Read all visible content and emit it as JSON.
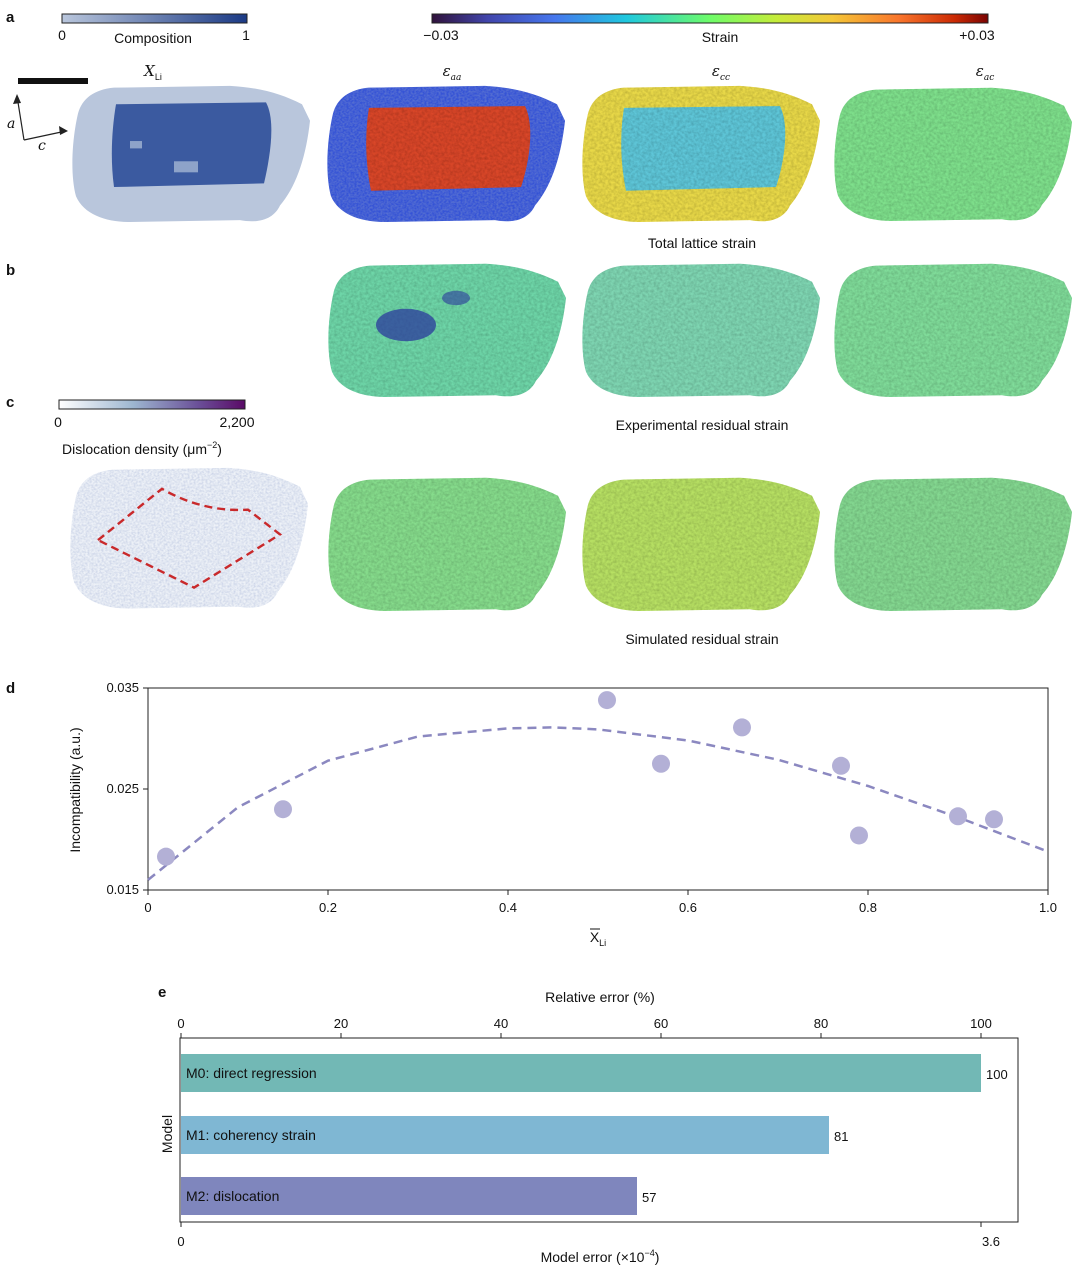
{
  "panel_labels": {
    "a": "a",
    "b": "b",
    "c": "c",
    "d": "d",
    "e": "e"
  },
  "composition_bar": {
    "min_label": "0",
    "max_label": "1",
    "title": "Composition",
    "colors": [
      "#b9c6dc",
      "#1b3a85"
    ]
  },
  "strain_bar": {
    "min_label": "−0.03",
    "max_label": "+0.03",
    "title": "Strain"
  },
  "dislocation_bar": {
    "min_label": "0",
    "max_label": "2,200",
    "title": "Dislocation density (μm",
    "title_exp": "−2",
    "title_end": ")"
  },
  "axes_glyph": {
    "a": "a",
    "c": "c"
  },
  "column_titles": {
    "xli": {
      "base": "X",
      "sub": "Li"
    },
    "eaa": {
      "base": "ε",
      "sub": "aa"
    },
    "ecc": {
      "base": "ε",
      "sub": "cc"
    },
    "eac": {
      "base": "ε",
      "sub": "ac"
    }
  },
  "row_titles": {
    "total": "Total lattice strain",
    "experimental": "Experimental residual strain",
    "simulated": "Simulated residual strain"
  },
  "chart_data": [
    {
      "type": "scatter",
      "panel": "d",
      "ylabel": "Incompatibility (a.u.)",
      "xlabel_base": "X",
      "xlabel_sub": "Li",
      "xlim": [
        0,
        1.0
      ],
      "ylim": [
        0.015,
        0.035
      ],
      "xticks": [
        "0",
        "0.2",
        "0.4",
        "0.6",
        "0.8",
        "1.0"
      ],
      "xtick_values": [
        0,
        0.2,
        0.4,
        0.6,
        0.8,
        1.0
      ],
      "yticks": [
        "0.015",
        "0.025",
        "0.035"
      ],
      "ytick_values": [
        0.015,
        0.025,
        0.035
      ],
      "points": [
        {
          "x": 0.02,
          "y": 0.0183
        },
        {
          "x": 0.15,
          "y": 0.023
        },
        {
          "x": 0.51,
          "y": 0.0338
        },
        {
          "x": 0.57,
          "y": 0.0275
        },
        {
          "x": 0.66,
          "y": 0.0311
        },
        {
          "x": 0.77,
          "y": 0.0273
        },
        {
          "x": 0.79,
          "y": 0.0204
        },
        {
          "x": 0.9,
          "y": 0.0223
        },
        {
          "x": 0.94,
          "y": 0.022
        }
      ],
      "fit_curve": [
        {
          "x": 0.0,
          "y": 0.016
        },
        {
          "x": 0.1,
          "y": 0.0232
        },
        {
          "x": 0.2,
          "y": 0.0278
        },
        {
          "x": 0.3,
          "y": 0.0302
        },
        {
          "x": 0.4,
          "y": 0.031
        },
        {
          "x": 0.45,
          "y": 0.0311
        },
        {
          "x": 0.5,
          "y": 0.0309
        },
        {
          "x": 0.6,
          "y": 0.0298
        },
        {
          "x": 0.7,
          "y": 0.0279
        },
        {
          "x": 0.8,
          "y": 0.0253
        },
        {
          "x": 0.9,
          "y": 0.0222
        },
        {
          "x": 1.0,
          "y": 0.0188
        }
      ],
      "point_color": "#b3b0d6",
      "curve_color": "#8b88c0"
    },
    {
      "type": "bar",
      "panel": "e",
      "orientation": "horizontal",
      "top_axis_label": "Relative error (%)",
      "top_ticks": [
        "0",
        "20",
        "40",
        "60",
        "80",
        "100"
      ],
      "top_tick_values": [
        0,
        20,
        40,
        60,
        80,
        100
      ],
      "xlim": [
        0,
        104
      ],
      "bottom_axis_label_base": "Model error (×10",
      "bottom_axis_label_exp": "−4",
      "bottom_axis_label_end": ")",
      "bottom_ticks": [
        "0",
        "3.6"
      ],
      "bottom_tick_values": [
        0,
        100
      ],
      "ylabel": "Model",
      "categories": [
        "M0: direct regression",
        "M1: coherency strain",
        "M2: dislocation"
      ],
      "values": [
        100,
        81,
        57
      ],
      "value_labels": [
        "100",
        "81",
        "57"
      ],
      "colors": [
        "#72b8b5",
        "#7fb7d3",
        "#7f86bd"
      ]
    }
  ]
}
